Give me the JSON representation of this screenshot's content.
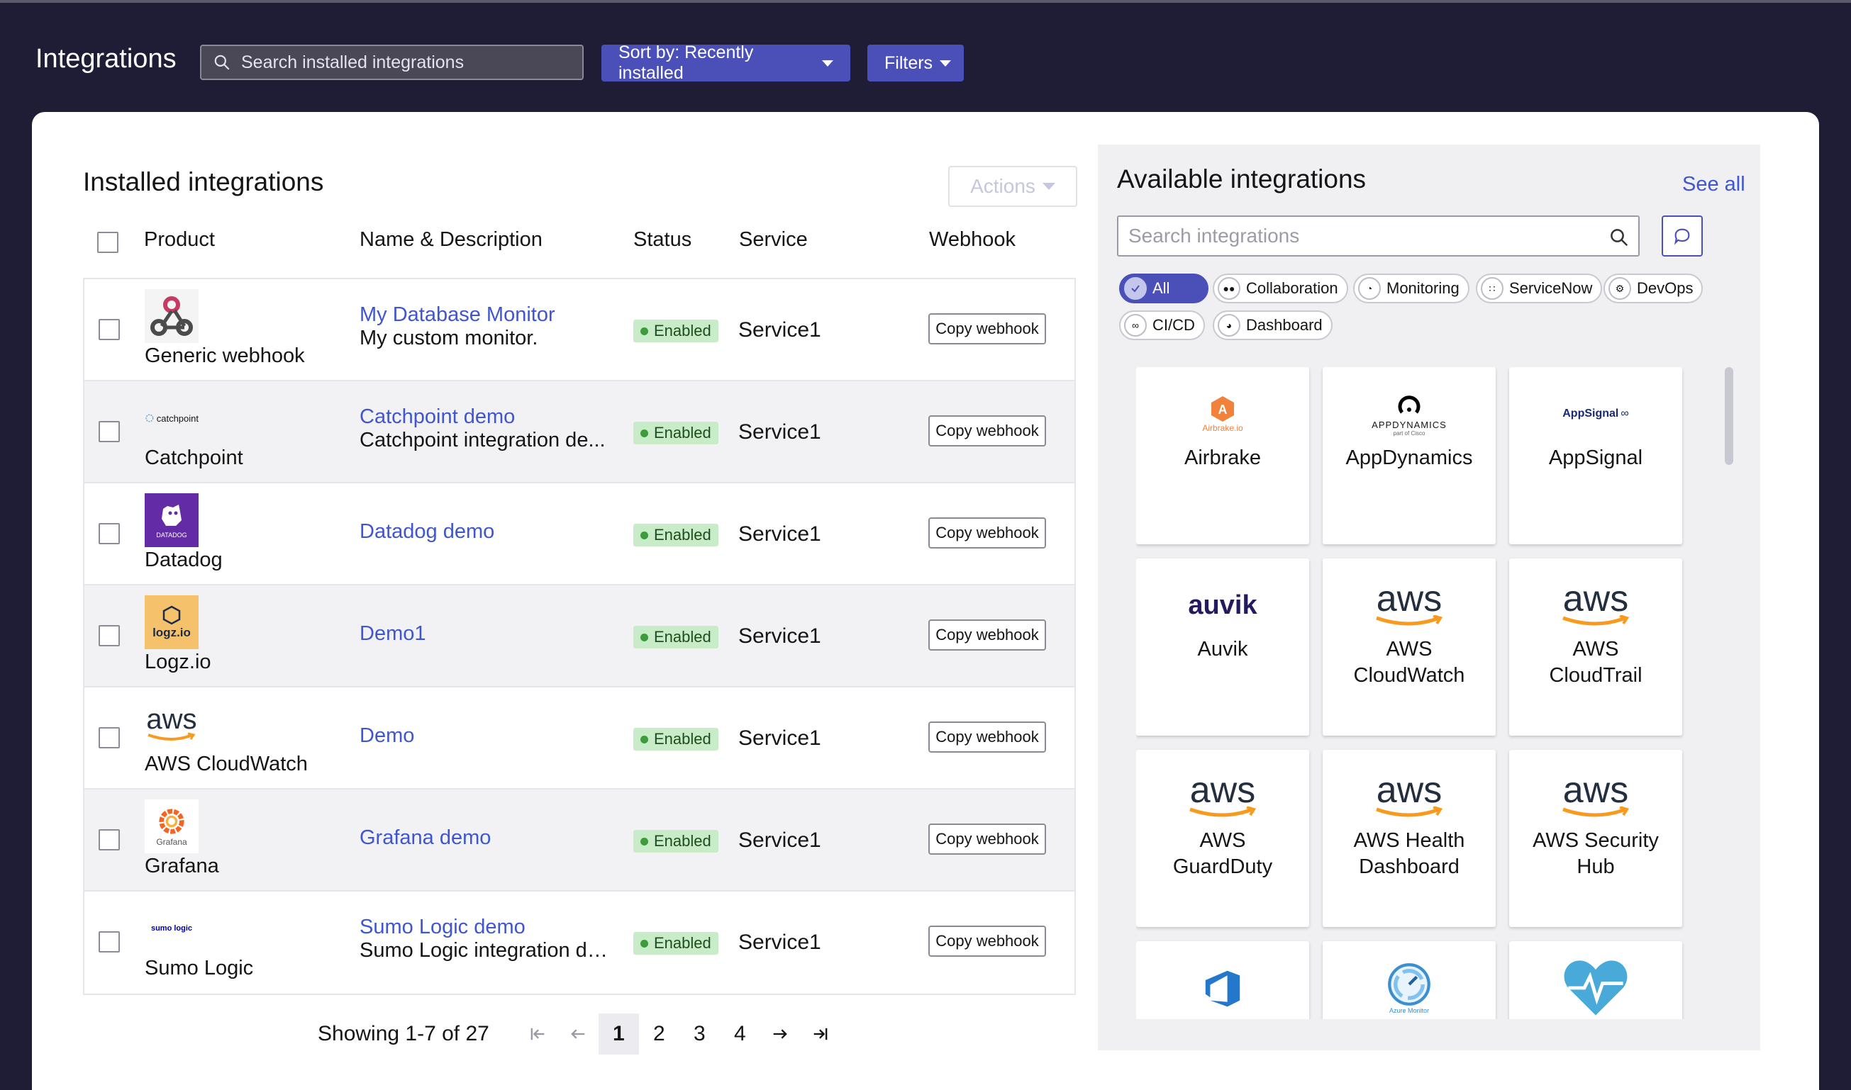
{
  "header": {
    "title": "Integrations",
    "search_placeholder": "Search installed integrations",
    "sort_label": "Sort by: Recently installed",
    "filters_label": "Filters"
  },
  "installed": {
    "title": "Installed integrations",
    "actions_label": "Actions",
    "columns": [
      "Product",
      "Name & Description",
      "Status",
      "Service",
      "Webhook"
    ],
    "rows": [
      {
        "product": "Generic webhook",
        "name": "My Database Monitor",
        "desc": "My custom monitor.",
        "status": "Enabled",
        "service": "Service1",
        "webhook": "Copy webhook",
        "logo": "webhook-icon"
      },
      {
        "product": "Catchpoint",
        "name": "Catchpoint demo",
        "desc": "Catchpoint integration de...",
        "status": "Enabled",
        "service": "Service1",
        "webhook": "Copy webhook",
        "logo": "catchpoint-logo",
        "logo_text": "catchpoint"
      },
      {
        "product": "Datadog",
        "name": "Datadog demo",
        "desc": "",
        "status": "Enabled",
        "service": "Service1",
        "webhook": "Copy webhook",
        "logo": "datadog-logo",
        "logo_text": "DATADOG"
      },
      {
        "product": "Logz.io",
        "name": "Demo1",
        "desc": "",
        "status": "Enabled",
        "service": "Service1",
        "webhook": "Copy webhook",
        "logo": "logzio-logo",
        "logo_text": "logz.io"
      },
      {
        "product": "AWS CloudWatch",
        "name": "Demo",
        "desc": "",
        "status": "Enabled",
        "service": "Service1",
        "webhook": "Copy webhook",
        "logo": "aws-logo",
        "logo_text": "aws"
      },
      {
        "product": "Grafana",
        "name": "Grafana demo",
        "desc": "",
        "status": "Enabled",
        "service": "Service1",
        "webhook": "Copy webhook",
        "logo": "grafana-logo",
        "logo_text": "Grafana"
      },
      {
        "product": "Sumo Logic",
        "name": "Sumo Logic demo",
        "desc": "Sumo Logic integration de...",
        "status": "Enabled",
        "service": "Service1",
        "webhook": "Copy webhook",
        "logo": "sumologic-logo",
        "logo_text": "sumo logic"
      }
    ],
    "pagination": {
      "summary": "Showing 1-7 of 27",
      "pages": [
        "1",
        "2",
        "3",
        "4"
      ],
      "current": "1"
    }
  },
  "available": {
    "title": "Available integrations",
    "see_all": "See all",
    "search_placeholder": "Search integrations",
    "chips": [
      {
        "label": "All",
        "icon": "check-icon",
        "active": true
      },
      {
        "label": "Collaboration",
        "icon": "people-icon"
      },
      {
        "label": "Monitoring",
        "icon": "gauge-icon"
      },
      {
        "label": "ServiceNow",
        "icon": "grid-icon"
      },
      {
        "label": "DevOps",
        "icon": "gear-icon"
      },
      {
        "label": "CI/CD",
        "icon": "link-icon"
      },
      {
        "label": "Dashboard",
        "icon": "dashboard-icon"
      }
    ],
    "tiles": [
      {
        "name": "Airbrake",
        "logo": "airbrake-logo",
        "logo_text": "Airbrake.io"
      },
      {
        "name": "AppDynamics",
        "logo": "appdynamics-logo",
        "logo_text": "APPDYNAMICS",
        "logo_sub": "part of Cisco"
      },
      {
        "name": "AppSignal",
        "logo": "appsignal-logo",
        "logo_text": "AppSignal"
      },
      {
        "name": "Auvik",
        "logo": "auvik-logo",
        "logo_text": "auvik"
      },
      {
        "name": "AWS\nCloudWatch",
        "logo": "aws-logo",
        "logo_text": "aws"
      },
      {
        "name": "AWS\nCloudTrail",
        "logo": "aws-logo",
        "logo_text": "aws"
      },
      {
        "name": "AWS\nGuardDuty",
        "logo": "aws-logo",
        "logo_text": "aws"
      },
      {
        "name": "AWS Health\nDashboard",
        "logo": "aws-logo",
        "logo_text": "aws"
      },
      {
        "name": "AWS Security\nHub",
        "logo": "aws-logo",
        "logo_text": "aws"
      },
      {
        "name": "",
        "logo": "azure-devops-logo"
      },
      {
        "name": "",
        "logo": "azure-monitor-logo",
        "logo_text": "Azure Monitor"
      },
      {
        "name": "",
        "logo": "heart-monitor-logo"
      }
    ]
  },
  "colors": {
    "background": "#1f1c36",
    "primary": "#4b50b8",
    "link": "#3f56d0",
    "enabled_badge": "#c9ecc8",
    "aws_orange": "#f79a1d"
  }
}
